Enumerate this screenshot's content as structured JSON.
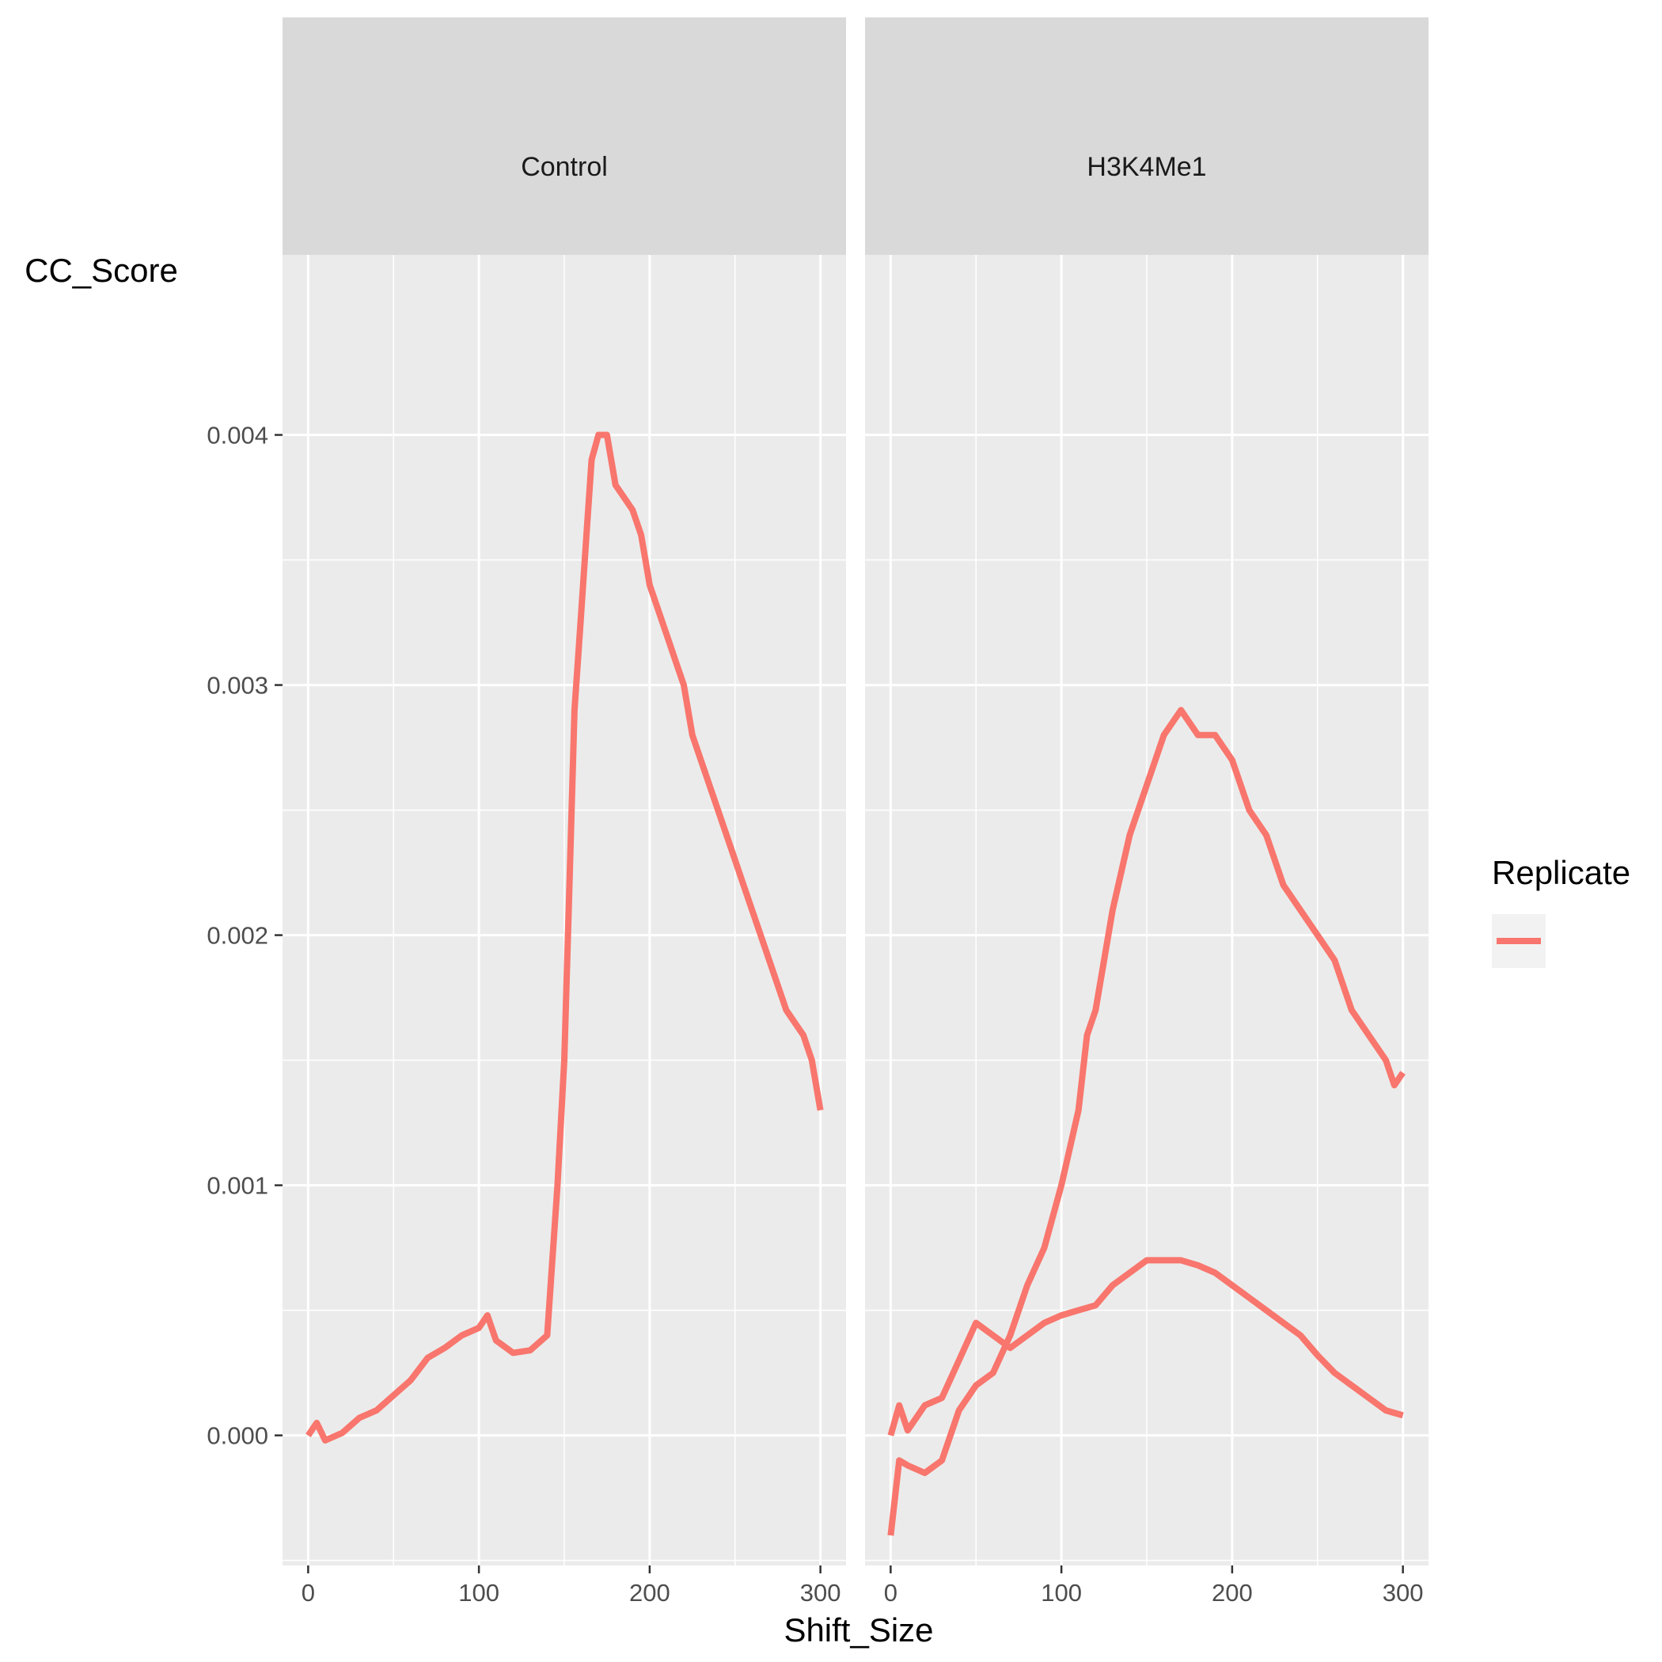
{
  "chart_data": {
    "type": "line",
    "xlabel": "Shift_Size",
    "ylabel": "CC_Score",
    "xlim": [
      -15,
      315
    ],
    "ylim": [
      -0.00052,
      0.00472
    ],
    "x_ticks": [
      "0",
      "100",
      "200",
      "300"
    ],
    "x_tick_values": [
      0,
      100,
      200,
      300
    ],
    "y_ticks": [
      "0.000",
      "0.001",
      "0.002",
      "0.003",
      "0.004"
    ],
    "y_tick_values": [
      0,
      0.001,
      0.002,
      0.003,
      0.004
    ],
    "grid": true,
    "legend": {
      "title": "Replicate",
      "position": "right",
      "entries": [
        ""
      ]
    },
    "line_color": "#F8766D",
    "panels": [
      {
        "label": "Control",
        "series": [
          {
            "x": [
              0,
              5,
              10,
              20,
              30,
              40,
              50,
              60,
              70,
              80,
              90,
              100,
              105,
              110,
              120,
              130,
              140,
              143,
              146,
              150,
              153,
              156,
              160,
              163,
              166,
              170,
              175,
              180,
              185,
              190,
              195,
              200,
              205,
              210,
              215,
              220,
              225,
              230,
              235,
              240,
              245,
              250,
              255,
              260,
              265,
              270,
              275,
              280,
              285,
              290,
              295,
              300
            ],
            "y": [
              0,
              5e-05,
              -2e-05,
              1e-05,
              7e-05,
              0.0001,
              0.00016,
              0.00022,
              0.00031,
              0.00035,
              0.0004,
              0.00043,
              0.00048,
              0.00038,
              0.00033,
              0.00034,
              0.0004,
              0.0007,
              0.001,
              0.0015,
              0.0022,
              0.0029,
              0.0033,
              0.0036,
              0.0039,
              0.004,
              0.004,
              0.0038,
              0.00375,
              0.0037,
              0.0036,
              0.0034,
              0.0033,
              0.0032,
              0.0031,
              0.003,
              0.0028,
              0.0027,
              0.0026,
              0.0025,
              0.0024,
              0.0023,
              0.0022,
              0.0021,
              0.002,
              0.0019,
              0.0018,
              0.0017,
              0.00165,
              0.0016,
              0.0015,
              0.0013
            ]
          }
        ]
      },
      {
        "label": "H3K4Me1",
        "series": [
          {
            "x": [
              0,
              5,
              10,
              20,
              30,
              40,
              50,
              60,
              70,
              80,
              90,
              100,
              110,
              115,
              120,
              130,
              140,
              150,
              160,
              170,
              180,
              190,
              200,
              210,
              220,
              230,
              240,
              250,
              260,
              270,
              280,
              290,
              295,
              300
            ],
            "y": [
              -0.0004,
              -0.0001,
              -0.00012,
              -0.00015,
              -0.0001,
              0.0001,
              0.0002,
              0.00025,
              0.0004,
              0.0006,
              0.00075,
              0.001,
              0.0013,
              0.0016,
              0.0017,
              0.0021,
              0.0024,
              0.0026,
              0.0028,
              0.0029,
              0.0028,
              0.0028,
              0.0027,
              0.0025,
              0.0024,
              0.0022,
              0.0021,
              0.002,
              0.0019,
              0.0017,
              0.0016,
              0.0015,
              0.0014,
              0.00145
            ]
          },
          {
            "x": [
              0,
              5,
              10,
              20,
              30,
              40,
              50,
              60,
              70,
              80,
              90,
              100,
              110,
              120,
              130,
              140,
              150,
              160,
              170,
              180,
              190,
              200,
              210,
              220,
              230,
              240,
              250,
              260,
              270,
              280,
              290,
              300
            ],
            "y": [
              0,
              0.00012,
              2e-05,
              0.00012,
              0.00015,
              0.0003,
              0.00045,
              0.0004,
              0.00035,
              0.0004,
              0.00045,
              0.00048,
              0.0005,
              0.00052,
              0.0006,
              0.00065,
              0.0007,
              0.0007,
              0.0007,
              0.00068,
              0.00065,
              0.0006,
              0.00055,
              0.0005,
              0.00045,
              0.0004,
              0.00032,
              0.00025,
              0.0002,
              0.00015,
              0.0001,
              8e-05
            ]
          }
        ]
      }
    ]
  }
}
